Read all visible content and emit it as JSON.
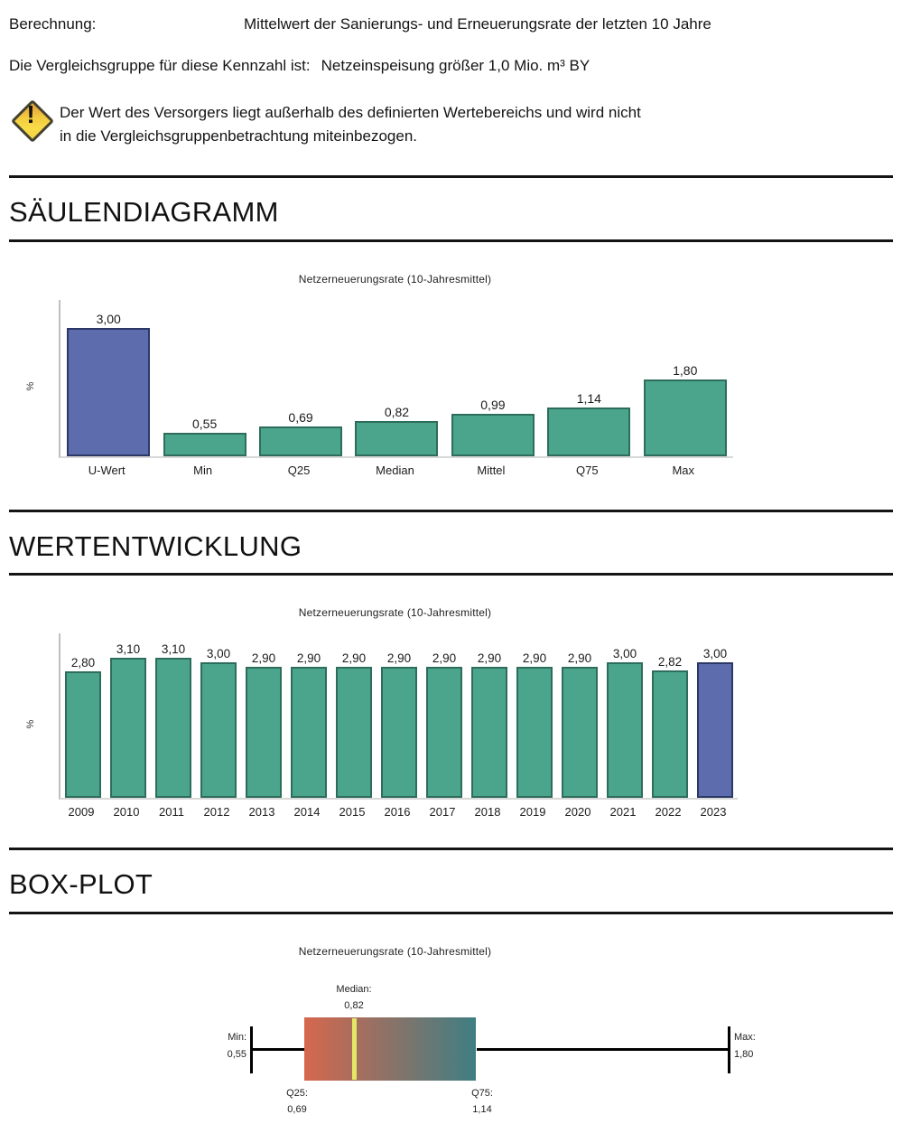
{
  "header": {
    "berechnung_label": "Berechnung:",
    "berechnung_value": "Mittelwert der Sanierungs- und Erneuerungsrate der letzten 10 Jahre",
    "vergleichsgruppe_label": "Die Vergleichsgruppe für diese Kennzahl ist:",
    "vergleichsgruppe_value": "Netzeinspeisung größer 1,0 Mio. m³ BY",
    "warning_icon": "warning-diamond-exclamation",
    "warning_exclamation": "!",
    "warning_lines": [
      "Der Wert des Versorgers liegt außerhalb des definierten Wertebereichs und wird nicht",
      "in die Vergleichsgruppenbetrachtung miteinbezogen."
    ]
  },
  "sections": [
    {
      "title": "SÄULENDIAGRAMM"
    },
    {
      "title": "WERTENTWICKLUNG"
    },
    {
      "title": "BOX-PLOT"
    }
  ],
  "colors": {
    "bar_teal": "#4BA58C",
    "bar_teal_border": "#2E6D5C",
    "bar_purple": "#5D6CAD",
    "bar_purple_border": "#2C3966",
    "boxplot_gradient_left": "#D6674D",
    "boxplot_gradient_right": "#3F7E83",
    "boxplot_median_line": "#E2E765",
    "warning_yellow": "#F5D341"
  },
  "chart_data": [
    {
      "type": "bar",
      "title": "Netzerneuerungsrate (10-Jahresmittel)",
      "xlabel": "",
      "ylabel": "%",
      "categories": [
        "U-Wert",
        "Min",
        "Q25",
        "Median",
        "Mittel",
        "Q75",
        "Max"
      ],
      "values": [
        3.0,
        0.55,
        0.69,
        0.82,
        0.99,
        1.14,
        1.8
      ],
      "value_labels": [
        "3,00",
        "0,55",
        "0,69",
        "0,82",
        "0,99",
        "1,14",
        "1,80"
      ],
      "highlight_index": 0,
      "ylim": [
        0,
        3.65
      ],
      "grid": false,
      "legend": false
    },
    {
      "type": "bar",
      "title": "Netzerneuerungsrate (10-Jahresmittel)",
      "xlabel": "",
      "ylabel": "%",
      "categories": [
        "2009",
        "2010",
        "2011",
        "2012",
        "2013",
        "2014",
        "2015",
        "2016",
        "2017",
        "2018",
        "2019",
        "2020",
        "2021",
        "2022",
        "2023"
      ],
      "values": [
        2.8,
        3.1,
        3.1,
        3.0,
        2.9,
        2.9,
        2.9,
        2.9,
        2.9,
        2.9,
        2.9,
        2.9,
        3.0,
        2.82,
        3.0
      ],
      "value_labels": [
        "2,80",
        "3,10",
        "3,10",
        "3,00",
        "2,90",
        "2,90",
        "2,90",
        "2,90",
        "2,90",
        "2,90",
        "2,90",
        "2,90",
        "3,00",
        "2,82",
        "3,00"
      ],
      "highlight_index": 14,
      "ylim": [
        0,
        3.65
      ],
      "grid": false,
      "legend": false
    },
    {
      "type": "boxplot",
      "title": "Netzerneuerungsrate (10-Jahresmittel)",
      "min": 0.55,
      "q25": 0.69,
      "median": 0.82,
      "q75": 1.14,
      "max": 1.8,
      "labels": {
        "min": "Min:",
        "min_value": "0,55",
        "q25": "Q25:",
        "q25_value": "0,69",
        "median": "Median:",
        "median_value": "0,82",
        "q75": "Q75:",
        "q75_value": "1,14",
        "max": "Max:",
        "max_value": "1,80"
      }
    }
  ]
}
